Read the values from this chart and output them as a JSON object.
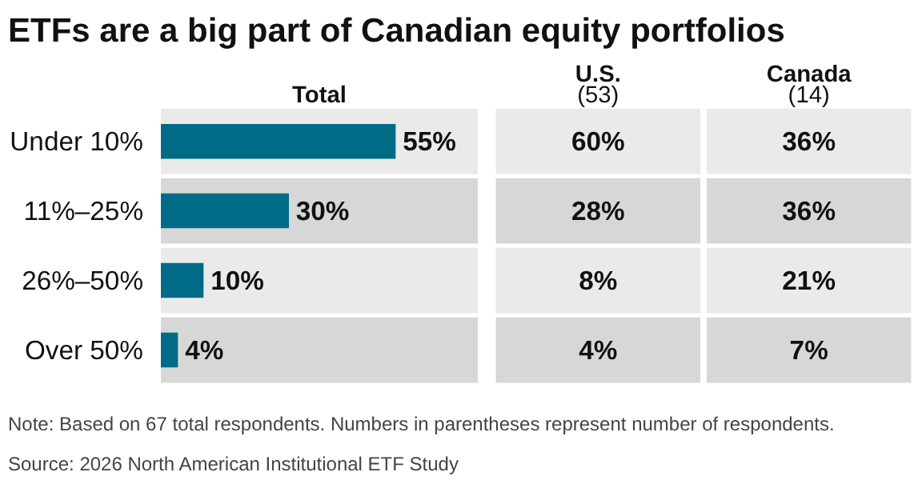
{
  "chart_data": [
    {
      "type": "bar",
      "orientation": "horizontal",
      "title": "ETFs are a big part of Canadian equity portfolios",
      "xlabel": "Total",
      "categories": [
        "Under 10%",
        "11%–25%",
        "26%–50%",
        "Over 50%"
      ],
      "values": [
        55,
        30,
        10,
        4
      ],
      "color": "#006b87",
      "value_labels": [
        "55%",
        "30%",
        "10%",
        "4%"
      ],
      "grid": false,
      "tick_labels": "y"
    },
    {
      "type": "other",
      "categories": [
        "U.S.\n(53)",
        "Canada\n(14)"
      ],
      "cell_labels": [
        [
          "60%",
          "36%"
        ],
        [
          "28%",
          "36%"
        ],
        [
          "8%",
          "21%"
        ],
        [
          "4%",
          "7%"
        ]
      ],
      "colors": [
        "#eaeaea",
        "#d7d7d7",
        "#eaeaea",
        "#d7d7d7"
      ],
      "annotations": [
        "Note: Based on 67 total respondents. Numbers in parentheses represent number of respondents.",
        "Source: 2026 North American Institutional ETF Study"
      ]
    }
  ]
}
